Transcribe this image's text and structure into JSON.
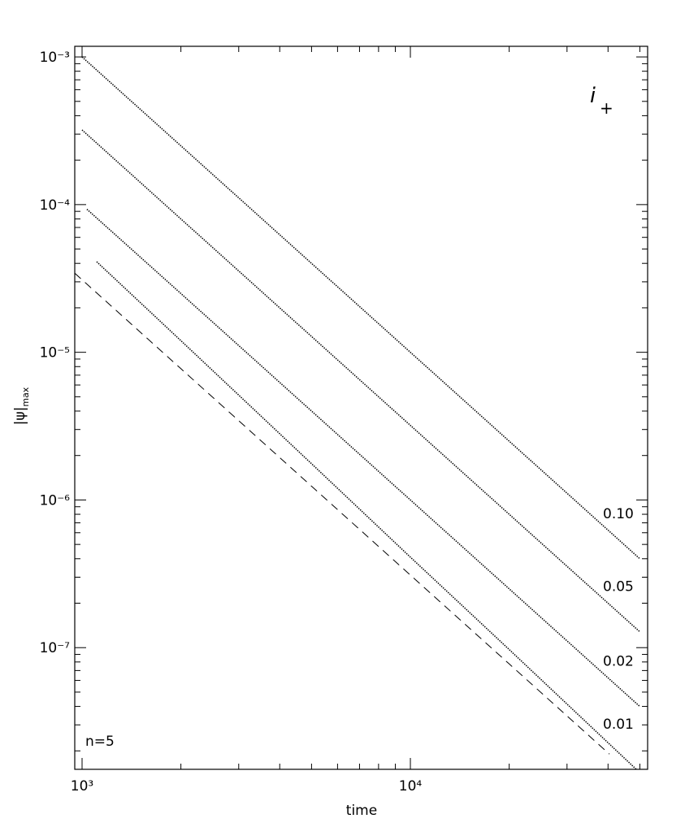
{
  "chart_data": {
    "type": "line",
    "xlabel": "time",
    "ylabel": {
      "main": "|ψ|",
      "sub": "max"
    },
    "legend_title": {
      "main": "i̇",
      "sub": "+"
    },
    "annotation": "n=5",
    "xlog": true,
    "ylog": true,
    "xlim": [
      950,
      52800
    ],
    "ylim": [
      1.5e-08,
      0.00118
    ],
    "xticks": [
      {
        "value": 1000,
        "label": "10³"
      },
      {
        "value": 10000,
        "label": "10⁴"
      }
    ],
    "xminorticks": [
      2000,
      3000,
      4000,
      5000,
      6000,
      7000,
      8000,
      9000,
      20000,
      30000,
      40000,
      50000
    ],
    "yticks": [
      {
        "value": 0.001,
        "label": "10⁻³"
      },
      {
        "value": 0.0001,
        "label": "10⁻⁴"
      },
      {
        "value": 1e-05,
        "label": "10⁻⁵"
      },
      {
        "value": 1e-06,
        "label": "10⁻⁶"
      },
      {
        "value": 1e-07,
        "label": "10⁻⁷"
      }
    ],
    "yminorticks": [
      2e-08,
      3e-08,
      4e-08,
      5e-08,
      6e-08,
      7e-08,
      8e-08,
      9e-08,
      2e-07,
      3e-07,
      4e-07,
      5e-07,
      6e-07,
      7e-07,
      8e-07,
      9e-07,
      2e-06,
      3e-06,
      4e-06,
      5e-06,
      6e-06,
      7e-06,
      8e-06,
      9e-06,
      2e-05,
      3e-05,
      4e-05,
      5e-05,
      6e-05,
      7e-05,
      8e-05,
      9e-05,
      0.0002,
      0.0003,
      0.0004,
      0.0005,
      0.0006,
      0.0007,
      0.0008,
      0.0009
    ],
    "series": [
      {
        "name": "0.10",
        "color": "#000000",
        "style": "dotted",
        "x": [
          1000,
          2000,
          5000,
          10000,
          20000,
          50000
        ],
        "values": [
          0.001,
          0.00025,
          4e-05,
          1e-05,
          2.5e-06,
          4e-07
        ]
      },
      {
        "name": "0.05",
        "color": "#000000",
        "style": "dotted",
        "x": [
          1000,
          2000,
          5000,
          10000,
          20000,
          50000
        ],
        "values": [
          0.00032,
          8e-05,
          1.28e-05,
          3.2e-06,
          8e-07,
          1.28e-07
        ]
      },
      {
        "name": "0.02",
        "color": "#000000",
        "style": "dotted",
        "x": [
          1035,
          2000,
          5000,
          10000,
          20000,
          50000
        ],
        "values": [
          9.3e-05,
          2.5e-05,
          4e-06,
          1e-06,
          2.5e-07,
          4e-08
        ]
      },
      {
        "name": "0.01",
        "color": "#000000",
        "style": "dotted",
        "x": [
          1108,
          2000,
          5000,
          10000,
          20000,
          48750
        ],
        "values": [
          4.1e-05,
          1.2e-05,
          1.76e-06,
          4.1e-07,
          9.7e-08,
          1.5e-08
        ]
      },
      {
        "color": "#000000",
        "style": "dashed",
        "x": [
          950,
          2000,
          5000,
          10000,
          20000,
          40400
        ],
        "values": [
          3.43e-05,
          7.75e-06,
          1.24e-06,
          3.1e-07,
          7.75e-08,
          1.9e-08
        ]
      }
    ]
  }
}
